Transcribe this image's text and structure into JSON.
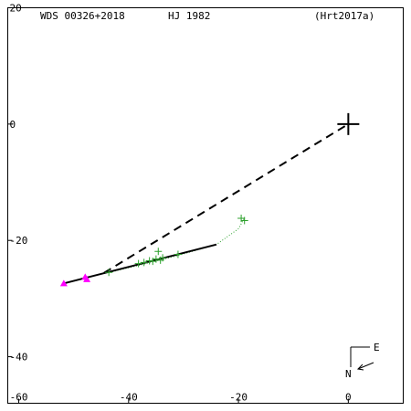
{
  "header": {
    "wds_id": "WDS 00326+2018",
    "discoverer": "HJ 1982",
    "reference": "(Hrt2017a)"
  },
  "compass": {
    "north": "N",
    "east": "E"
  },
  "colors": {
    "frame": "#000000",
    "observed_points": "#2ca02c",
    "first_obs_marker": "#ff00ff",
    "orbit_line": "#000000",
    "to_primary_line": "#000000",
    "residual_line": "#2ca02c"
  },
  "chart_data": {
    "type": "scatter",
    "title": "",
    "xlabel": "",
    "ylabel": "",
    "xlim": [
      -62,
      10
    ],
    "ylim": [
      -48,
      20
    ],
    "x_ticks": [
      -60,
      -40,
      -20,
      0
    ],
    "y_ticks": [
      20,
      0,
      -20,
      -40
    ],
    "x_tick_labels": [
      "-60",
      "-40",
      "-20",
      "0"
    ],
    "y_tick_labels": [
      "20",
      "0",
      "-20",
      "-40"
    ],
    "grid": false,
    "primary_star": {
      "x": 0,
      "y": 0
    },
    "solid_line": [
      [
        -51.8,
        -27.4
      ],
      [
        -24.0,
        -20.7
      ]
    ],
    "dashed_line": [
      [
        -44.5,
        -25.6
      ],
      [
        0,
        0
      ]
    ],
    "dotted_track": [
      [
        -43.0,
        -25.4
      ],
      [
        -36.0,
        -23.8
      ],
      [
        -31.0,
        -22.6
      ],
      [
        -24.0,
        -20.7
      ],
      [
        -20.0,
        -18.0
      ],
      [
        -19.0,
        -16.3
      ]
    ],
    "triangle_points": [
      [
        -51.8,
        -27.4
      ],
      [
        -47.9,
        -26.3
      ],
      [
        -47.6,
        -26.7
      ]
    ],
    "plus_points": [
      [
        -43.6,
        -25.5
      ],
      [
        -38.2,
        -24.0
      ],
      [
        -37.2,
        -23.8
      ],
      [
        -36.2,
        -23.5
      ],
      [
        -35.6,
        -23.6
      ],
      [
        -35.0,
        -23.2
      ],
      [
        -34.6,
        -21.9
      ],
      [
        -34.2,
        -23.4
      ],
      [
        -33.8,
        -23.0
      ],
      [
        -31.0,
        -22.4
      ],
      [
        -19.5,
        -16.2
      ],
      [
        -18.9,
        -16.6
      ]
    ]
  }
}
